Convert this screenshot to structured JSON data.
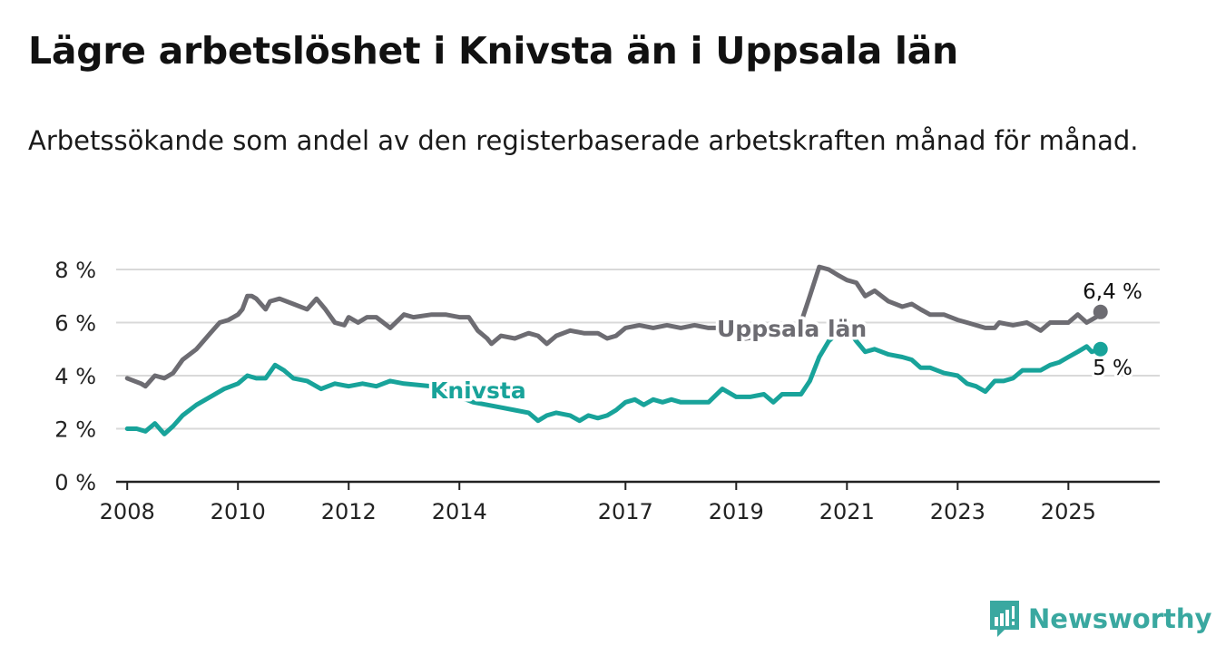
{
  "title": "Lägre arbetslöshet i Knivsta än i Uppsala län",
  "subtitle": "Arbetssökande som andel av den registerbaserade arbetskraften månad för månad.",
  "brand": "Newsworthy",
  "colors": {
    "uppsala": "#6d6c72",
    "knivsta": "#18a39a",
    "grid": "#d9d9d9",
    "axis": "#222222",
    "brand": "#3aa8a0"
  },
  "chart_data": {
    "type": "line",
    "title": "Lägre arbetslöshet i Knivsta än i Uppsala län",
    "subtitle": "Arbetssökande som andel av den registerbaserade arbetskraften månad för månad.",
    "xlabel": "",
    "ylabel": "",
    "xlim": [
      2007.8,
      2026.65
    ],
    "ylim": [
      0,
      8
    ],
    "x_ticks": [
      2008,
      2010,
      2012,
      2014,
      2017,
      2019,
      2021,
      2023,
      2025
    ],
    "x_tick_labels": [
      "2008",
      "2010",
      "2012",
      "2014",
      "2017",
      "2019",
      "2021",
      "2023",
      "2025"
    ],
    "y_ticks": [
      0,
      2,
      4,
      6,
      8
    ],
    "y_tick_labels": [
      "0 %",
      "2 %",
      "4 %",
      "6 %",
      "8 %"
    ],
    "grid": true,
    "legend": "inline labels",
    "series": [
      {
        "name": "Uppsala län",
        "color": "#6d6c72",
        "end_label": "6,4 %",
        "points": [
          [
            2008.0,
            3.9
          ],
          [
            2008.25,
            3.7
          ],
          [
            2008.33,
            3.6
          ],
          [
            2008.5,
            4.0
          ],
          [
            2008.67,
            3.9
          ],
          [
            2008.83,
            4.1
          ],
          [
            2009.0,
            4.6
          ],
          [
            2009.25,
            5.0
          ],
          [
            2009.5,
            5.6
          ],
          [
            2009.67,
            6.0
          ],
          [
            2009.83,
            6.1
          ],
          [
            2010.0,
            6.3
          ],
          [
            2010.08,
            6.5
          ],
          [
            2010.17,
            7.0
          ],
          [
            2010.25,
            7.0
          ],
          [
            2010.33,
            6.9
          ],
          [
            2010.5,
            6.5
          ],
          [
            2010.58,
            6.8
          ],
          [
            2010.75,
            6.9
          ],
          [
            2011.0,
            6.7
          ],
          [
            2011.25,
            6.5
          ],
          [
            2011.42,
            6.9
          ],
          [
            2011.58,
            6.5
          ],
          [
            2011.75,
            6.0
          ],
          [
            2011.92,
            5.9
          ],
          [
            2012.0,
            6.2
          ],
          [
            2012.17,
            6.0
          ],
          [
            2012.33,
            6.2
          ],
          [
            2012.5,
            6.2
          ],
          [
            2012.75,
            5.8
          ],
          [
            2013.0,
            6.3
          ],
          [
            2013.17,
            6.2
          ],
          [
            2013.5,
            6.3
          ],
          [
            2013.75,
            6.3
          ],
          [
            2014.0,
            6.2
          ],
          [
            2014.17,
            6.2
          ],
          [
            2014.33,
            5.7
          ],
          [
            2014.5,
            5.4
          ],
          [
            2014.58,
            5.2
          ],
          [
            2014.75,
            5.5
          ],
          [
            2015.0,
            5.4
          ],
          [
            2015.25,
            5.6
          ],
          [
            2015.42,
            5.5
          ],
          [
            2015.58,
            5.2
          ],
          [
            2015.75,
            5.5
          ],
          [
            2016.0,
            5.7
          ],
          [
            2016.25,
            5.6
          ],
          [
            2016.5,
            5.6
          ],
          [
            2016.67,
            5.4
          ],
          [
            2016.83,
            5.5
          ],
          [
            2017.0,
            5.8
          ],
          [
            2017.25,
            5.9
          ],
          [
            2017.5,
            5.8
          ],
          [
            2017.75,
            5.9
          ],
          [
            2018.0,
            5.8
          ],
          [
            2018.25,
            5.9
          ],
          [
            2018.5,
            5.8
          ],
          [
            2018.75,
            5.8
          ],
          [
            2019.0,
            5.5
          ],
          [
            2019.17,
            5.4
          ],
          [
            2019.5,
            5.5
          ],
          [
            2019.75,
            5.6
          ],
          [
            2020.0,
            5.7
          ],
          [
            2020.17,
            6.0
          ],
          [
            2020.33,
            7.0
          ],
          [
            2020.5,
            8.1
          ],
          [
            2020.67,
            8.0
          ],
          [
            2020.83,
            7.8
          ],
          [
            2021.0,
            7.6
          ],
          [
            2021.17,
            7.5
          ],
          [
            2021.33,
            7.0
          ],
          [
            2021.5,
            7.2
          ],
          [
            2021.75,
            6.8
          ],
          [
            2022.0,
            6.6
          ],
          [
            2022.17,
            6.7
          ],
          [
            2022.33,
            6.5
          ],
          [
            2022.5,
            6.3
          ],
          [
            2022.75,
            6.3
          ],
          [
            2023.0,
            6.1
          ],
          [
            2023.17,
            6.0
          ],
          [
            2023.33,
            5.9
          ],
          [
            2023.5,
            5.8
          ],
          [
            2023.67,
            5.8
          ],
          [
            2023.75,
            6.0
          ],
          [
            2024.0,
            5.9
          ],
          [
            2024.25,
            6.0
          ],
          [
            2024.5,
            5.7
          ],
          [
            2024.67,
            6.0
          ],
          [
            2024.83,
            6.0
          ],
          [
            2025.0,
            6.0
          ],
          [
            2025.17,
            6.3
          ],
          [
            2025.33,
            6.0
          ],
          [
            2025.5,
            6.2
          ],
          [
            2025.58,
            6.4
          ]
        ]
      },
      {
        "name": "Knivsta",
        "color": "#18a39a",
        "end_label": "5 %",
        "points": [
          [
            2008.0,
            2.0
          ],
          [
            2008.17,
            2.0
          ],
          [
            2008.33,
            1.9
          ],
          [
            2008.5,
            2.2
          ],
          [
            2008.67,
            1.8
          ],
          [
            2008.83,
            2.1
          ],
          [
            2009.0,
            2.5
          ],
          [
            2009.25,
            2.9
          ],
          [
            2009.5,
            3.2
          ],
          [
            2009.75,
            3.5
          ],
          [
            2010.0,
            3.7
          ],
          [
            2010.17,
            4.0
          ],
          [
            2010.33,
            3.9
          ],
          [
            2010.5,
            3.9
          ],
          [
            2010.67,
            4.4
          ],
          [
            2010.83,
            4.2
          ],
          [
            2011.0,
            3.9
          ],
          [
            2011.25,
            3.8
          ],
          [
            2011.5,
            3.5
          ],
          [
            2011.75,
            3.7
          ],
          [
            2012.0,
            3.6
          ],
          [
            2012.25,
            3.7
          ],
          [
            2012.5,
            3.6
          ],
          [
            2012.75,
            3.8
          ],
          [
            2013.0,
            3.7
          ],
          [
            2013.5,
            3.6
          ],
          [
            2014.0,
            3.2
          ],
          [
            2014.25,
            3.0
          ],
          [
            2014.5,
            2.9
          ],
          [
            2014.75,
            2.8
          ],
          [
            2015.0,
            2.7
          ],
          [
            2015.25,
            2.6
          ],
          [
            2015.42,
            2.3
          ],
          [
            2015.58,
            2.5
          ],
          [
            2015.75,
            2.6
          ],
          [
            2016.0,
            2.5
          ],
          [
            2016.17,
            2.3
          ],
          [
            2016.33,
            2.5
          ],
          [
            2016.5,
            2.4
          ],
          [
            2016.67,
            2.5
          ],
          [
            2016.83,
            2.7
          ],
          [
            2017.0,
            3.0
          ],
          [
            2017.17,
            3.1
          ],
          [
            2017.33,
            2.9
          ],
          [
            2017.5,
            3.1
          ],
          [
            2017.67,
            3.0
          ],
          [
            2017.83,
            3.1
          ],
          [
            2018.0,
            3.0
          ],
          [
            2018.25,
            3.0
          ],
          [
            2018.5,
            3.0
          ],
          [
            2018.75,
            3.5
          ],
          [
            2019.0,
            3.2
          ],
          [
            2019.25,
            3.2
          ],
          [
            2019.5,
            3.3
          ],
          [
            2019.67,
            3.0
          ],
          [
            2019.83,
            3.3
          ],
          [
            2020.0,
            3.3
          ],
          [
            2020.17,
            3.3
          ],
          [
            2020.33,
            3.8
          ],
          [
            2020.5,
            4.7
          ],
          [
            2020.67,
            5.3
          ],
          [
            2020.83,
            5.6
          ],
          [
            2021.0,
            5.8
          ],
          [
            2021.17,
            5.3
          ],
          [
            2021.33,
            4.9
          ],
          [
            2021.5,
            5.0
          ],
          [
            2021.75,
            4.8
          ],
          [
            2022.0,
            4.7
          ],
          [
            2022.17,
            4.6
          ],
          [
            2022.33,
            4.3
          ],
          [
            2022.5,
            4.3
          ],
          [
            2022.75,
            4.1
          ],
          [
            2023.0,
            4.0
          ],
          [
            2023.17,
            3.7
          ],
          [
            2023.33,
            3.6
          ],
          [
            2023.5,
            3.4
          ],
          [
            2023.67,
            3.8
          ],
          [
            2023.83,
            3.8
          ],
          [
            2024.0,
            3.9
          ],
          [
            2024.17,
            4.2
          ],
          [
            2024.5,
            4.2
          ],
          [
            2024.67,
            4.4
          ],
          [
            2024.83,
            4.5
          ],
          [
            2025.0,
            4.7
          ],
          [
            2025.17,
            4.9
          ],
          [
            2025.33,
            5.1
          ],
          [
            2025.42,
            4.9
          ],
          [
            2025.58,
            5.0
          ]
        ]
      }
    ]
  }
}
